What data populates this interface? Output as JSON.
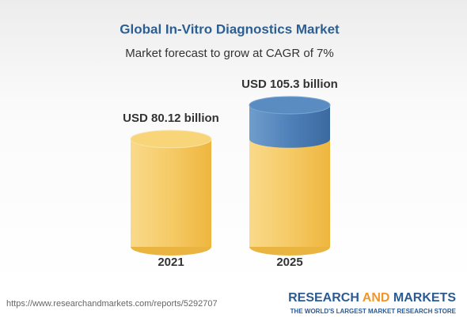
{
  "chart_data": {
    "type": "cylinder",
    "title": "Global In-Vitro Diagnostics Market",
    "subtitle": "Market forecast to grow at CAGR of 7%",
    "categories": [
      "2021",
      "2025"
    ],
    "values": [
      80.12,
      105.3
    ],
    "value_labels": [
      "USD 80.12 billion",
      "USD 105.3 billion"
    ],
    "color": "#f4c55a",
    "growth_color": "#4a7db5"
  },
  "footer": {
    "url": "https://www.researchandmarkets.com/reports/5292707",
    "brand": [
      "RESEARCH",
      "AND",
      "MARKETS"
    ],
    "tagline": "THE WORLD'S LARGEST MARKET RESEARCH STORE"
  }
}
